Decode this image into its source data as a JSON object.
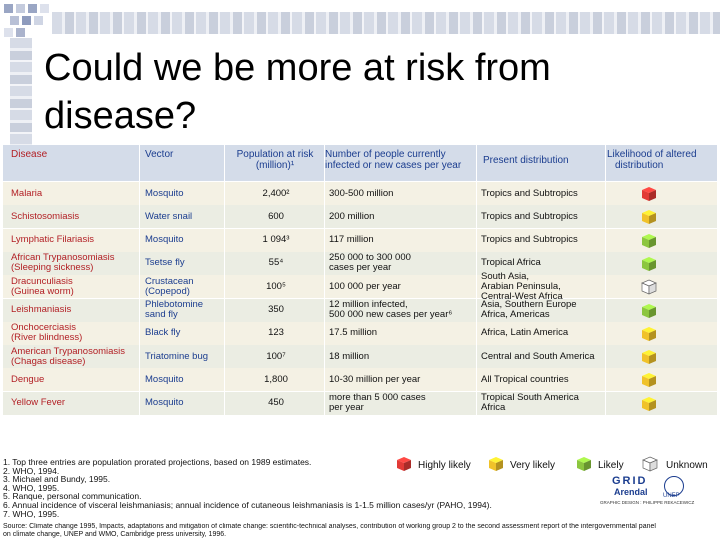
{
  "slide": {
    "title_line1": "Could we be more at risk from",
    "title_line2": "disease?"
  },
  "table": {
    "headers": {
      "disease": "Disease",
      "vector": "Vector",
      "population_l1": "Population at risk",
      "population_l2": "(million)¹",
      "number_l1": "Number of people currently",
      "number_l2": "infected or new cases per year",
      "distribution": "Present distribution",
      "likelihood_l1": "Likelihood of altered",
      "likelihood_l2": "distribution"
    },
    "rows": [
      {
        "disease_l1": "Malaria",
        "disease_l2": "",
        "vector_l1": "Mosquito",
        "vector_l2": "",
        "population": "2,400²",
        "number_l1": "300-500 million",
        "number_l2": "",
        "dist_l1": "Tropics and Subtropics",
        "dist_l2": "",
        "dist_l3": "",
        "likelihood": "highly-likely",
        "cube_color": "#e23a36"
      },
      {
        "disease_l1": "Schistosomiasis",
        "disease_l2": "",
        "vector_l1": "Water snail",
        "vector_l2": "",
        "population": "600",
        "number_l1": "200 million",
        "number_l2": "",
        "dist_l1": "Tropics and Subtropics",
        "dist_l2": "",
        "dist_l3": "",
        "likelihood": "very-likely",
        "cube_color": "#f0c22a"
      },
      {
        "disease_l1": "Lymphatic Filariasis",
        "disease_l2": "",
        "vector_l1": "Mosquito",
        "vector_l2": "",
        "population": "1 094³",
        "number_l1": "117 million",
        "number_l2": "",
        "dist_l1": "Tropics and Subtropics",
        "dist_l2": "",
        "dist_l3": "",
        "likelihood": "likely",
        "cube_color": "#8cc63f"
      },
      {
        "disease_l1": "African Trypanosomiasis",
        "disease_l2": "(Sleeping sickness)",
        "vector_l1": "Tsetse fly",
        "vector_l2": "",
        "population": "55⁴",
        "number_l1": "250 000 to 300 000",
        "number_l2": "cases per year",
        "dist_l1": "Tropical Africa",
        "dist_l2": "",
        "dist_l3": "",
        "likelihood": "likely",
        "cube_color": "#8cc63f"
      },
      {
        "disease_l1": "Dracunculiasis",
        "disease_l2": "(Guinea worm)",
        "vector_l1": "Crustacean",
        "vector_l2": "(Copepod)",
        "population": "100⁵",
        "number_l1": "100 000 per year",
        "number_l2": "",
        "dist_l1": "South Asia,",
        "dist_l2": "Arabian Peninsula,",
        "dist_l3": "Central-West Africa",
        "likelihood": "unknown",
        "cube_color": "#ffffff"
      },
      {
        "disease_l1": "Leishmaniasis",
        "disease_l2": "",
        "vector_l1": "Phlebotomine",
        "vector_l2": "sand fly",
        "population": "350",
        "number_l1": "12 million infected,",
        "number_l2": "500 000 new cases per year⁶",
        "dist_l1": "Asia, Southern Europe",
        "dist_l2": "Africa, Americas",
        "dist_l3": "",
        "likelihood": "likely",
        "cube_color": "#8cc63f"
      },
      {
        "disease_l1": "Onchocerciasis",
        "disease_l2": "(River blindness)",
        "vector_l1": "Black fly",
        "vector_l2": "",
        "population": "123",
        "number_l1": "17.5 million",
        "number_l2": "",
        "dist_l1": "Africa, Latin America",
        "dist_l2": "",
        "dist_l3": "",
        "likelihood": "very-likely",
        "cube_color": "#f0c22a"
      },
      {
        "disease_l1": "American Trypanosomiasis",
        "disease_l2": "(Chagas disease)",
        "vector_l1": "Triatomine bug",
        "vector_l2": "",
        "population": "100⁷",
        "number_l1": "18 million",
        "number_l2": "",
        "dist_l1": "Central and South America",
        "dist_l2": "",
        "dist_l3": "",
        "likelihood": "very-likely",
        "cube_color": "#f0c22a"
      },
      {
        "disease_l1": "Dengue",
        "disease_l2": "",
        "vector_l1": "Mosquito",
        "vector_l2": "",
        "population": "1,800",
        "number_l1": "10-30 million per year",
        "number_l2": "",
        "dist_l1": "All Tropical countries",
        "dist_l2": "",
        "dist_l3": "",
        "likelihood": "very-likely",
        "cube_color": "#f0c22a"
      },
      {
        "disease_l1": "Yellow Fever",
        "disease_l2": "",
        "vector_l1": "Mosquito",
        "vector_l2": "",
        "population": "450",
        "number_l1": "more than 5 000 cases",
        "number_l2": "per year",
        "dist_l1": "Tropical South America",
        "dist_l2": "Africa",
        "dist_l3": "",
        "likelihood": "very-likely",
        "cube_color": "#f0c22a"
      }
    ]
  },
  "notes": [
    "1. Top three entries are population prorated projections, based on 1989 estimates.",
    "2. WHO, 1994.",
    "3. Michael and Bundy, 1995.",
    "4. WHO, 1995.",
    "5. Ranque, personal communication.",
    "6. Annual incidence of visceral leishmaniasis; annual incidence of cutaneous leishmaniasis is 1-1.5 million cases/yr (PAHO, 1994).",
    "7. WHO, 1995."
  ],
  "legend": {
    "highly": "Highly likely",
    "very": "Very likely",
    "likely": "Likely",
    "unknown": "Unknown",
    "colors": {
      "highly": "#e23a36",
      "very": "#f0c22a",
      "likely": "#8cc63f",
      "unknown": "#ffffff"
    }
  },
  "logo": {
    "grid": "GRID",
    "arendal": "Arendal",
    "unep": "UNEP",
    "credit": "GRAPHIC DESIGN : PHILIPPE REKACEWICZ"
  },
  "source": {
    "line1": "Source: Climate change 1995, Impacts, adaptations and mitigation of climate change: scientific-technical analyses, contribution of working group 2 to the second assessment report of the intergovernmental panel",
    "line2": "on climate change, UNEP and WMO, Cambridge press university, 1996."
  }
}
